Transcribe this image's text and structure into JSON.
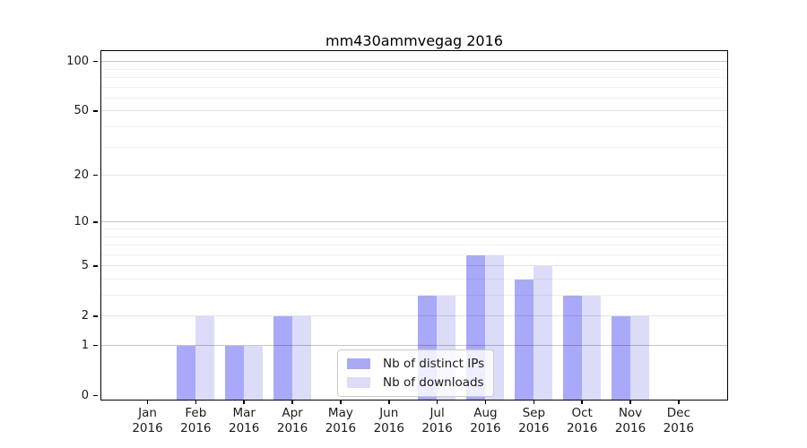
{
  "title": "mm430ammvegag 2016",
  "chart_data": {
    "type": "bar",
    "title": "mm430ammvegag 2016",
    "categories": [
      "Jan 2016",
      "Feb 2016",
      "Mar 2016",
      "Apr 2016",
      "May 2016",
      "Jun 2016",
      "Jul 2016",
      "Aug 2016",
      "Sep 2016",
      "Oct 2016",
      "Nov 2016",
      "Dec 2016"
    ],
    "x_tick_line1": [
      "Jan",
      "Feb",
      "Mar",
      "Apr",
      "May",
      "Jun",
      "Jul",
      "Aug",
      "Sep",
      "Oct",
      "Nov",
      "Dec"
    ],
    "x_tick_line2": [
      "2016",
      "2016",
      "2016",
      "2016",
      "2016",
      "2016",
      "2016",
      "2016",
      "2016",
      "2016",
      "2016",
      "2016"
    ],
    "series": [
      {
        "name": "Nb of distinct IPs",
        "color": "#a9a9f9",
        "values": [
          0,
          1,
          1,
          2,
          0,
          0,
          3,
          6,
          4,
          3,
          2,
          0
        ]
      },
      {
        "name": "Nb of downloads",
        "color": "#dcdcf9",
        "values": [
          0,
          2,
          1,
          2,
          0,
          0,
          3,
          6,
          5,
          3,
          2,
          0
        ]
      }
    ],
    "xlabel": "",
    "ylabel": "",
    "yscale": "log1p",
    "ylim": [
      0,
      117
    ],
    "y_major_ticks": [
      0,
      1,
      2,
      5,
      10,
      20,
      50,
      100
    ],
    "y_decade_gridlines": [
      1,
      10,
      100
    ],
    "y_mid_gridlines": [
      2,
      5,
      20,
      50
    ],
    "y_minor_gridlines": [
      3,
      4,
      6,
      7,
      8,
      9,
      30,
      40,
      60,
      70,
      80,
      90
    ],
    "grid": "both, drawn over bars",
    "legend_position": "lower center",
    "legend_frame_color": "#cccccc"
  }
}
